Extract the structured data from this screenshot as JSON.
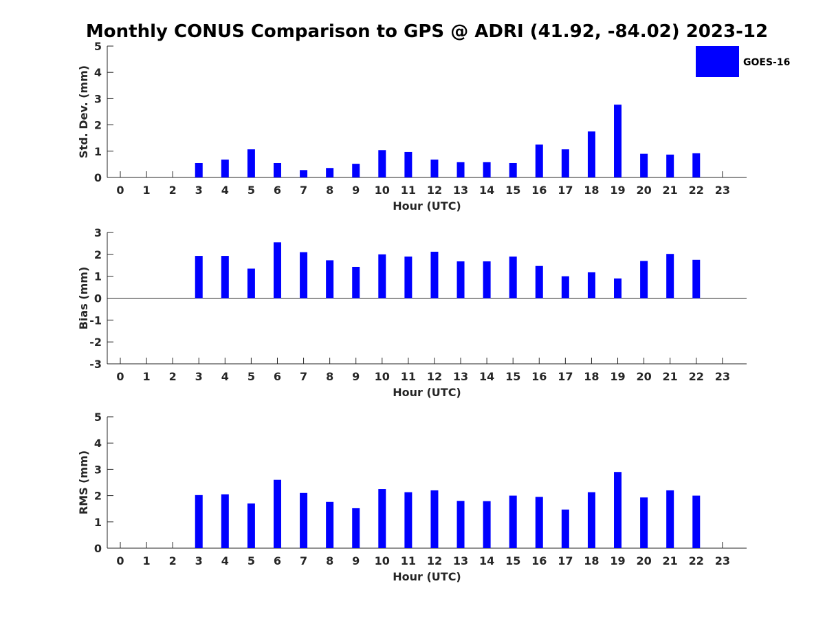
{
  "title": "Monthly CONUS Comparison to GPS @ ADRI (41.92, -84.02) 2023-12",
  "legend": {
    "label": "GOES-16",
    "color": "#0000ff"
  },
  "colors": {
    "bar": "#0000ff",
    "axis": "#262626"
  },
  "chart_data": [
    {
      "type": "bar",
      "id": "stddev",
      "ylabel": "Std. Dev. (mm)",
      "xlabel": "Hour (UTC)",
      "ylim": [
        0,
        5
      ],
      "yticks": [
        0,
        1,
        2,
        3,
        4,
        5
      ],
      "categories": [
        "0",
        "1",
        "2",
        "3",
        "4",
        "5",
        "6",
        "7",
        "8",
        "9",
        "10",
        "11",
        "12",
        "13",
        "14",
        "15",
        "16",
        "17",
        "18",
        "19",
        "20",
        "21",
        "22",
        "23"
      ],
      "series": [
        {
          "name": "GOES-16",
          "values": [
            null,
            null,
            null,
            0.55,
            0.68,
            1.07,
            0.55,
            0.28,
            0.36,
            0.52,
            1.04,
            0.97,
            0.68,
            0.58,
            0.58,
            0.55,
            1.25,
            1.07,
            1.75,
            2.77,
            0.9,
            0.87,
            0.92,
            null
          ]
        }
      ]
    },
    {
      "type": "bar",
      "id": "bias",
      "ylabel": "Bias (mm)",
      "xlabel": "Hour (UTC)",
      "ylim": [
        -3,
        3
      ],
      "yticks": [
        -3,
        -2,
        -1,
        0,
        1,
        2,
        3
      ],
      "categories": [
        "0",
        "1",
        "2",
        "3",
        "4",
        "5",
        "6",
        "7",
        "8",
        "9",
        "10",
        "11",
        "12",
        "13",
        "14",
        "15",
        "16",
        "17",
        "18",
        "19",
        "20",
        "21",
        "22",
        "23"
      ],
      "series": [
        {
          "name": "GOES-16",
          "values": [
            null,
            null,
            null,
            1.93,
            1.93,
            1.35,
            2.55,
            2.1,
            1.73,
            1.43,
            2.0,
            1.9,
            2.12,
            1.68,
            1.68,
            1.9,
            1.47,
            1.0,
            1.18,
            0.9,
            1.7,
            2.02,
            1.75,
            null
          ]
        }
      ]
    },
    {
      "type": "bar",
      "id": "rms",
      "ylabel": "RMS (mm)",
      "xlabel": "Hour (UTC)",
      "ylim": [
        0,
        5
      ],
      "yticks": [
        0,
        1,
        2,
        3,
        4,
        5
      ],
      "categories": [
        "0",
        "1",
        "2",
        "3",
        "4",
        "5",
        "6",
        "7",
        "8",
        "9",
        "10",
        "11",
        "12",
        "13",
        "14",
        "15",
        "16",
        "17",
        "18",
        "19",
        "20",
        "21",
        "22",
        "23"
      ],
      "series": [
        {
          "name": "GOES-16",
          "values": [
            null,
            null,
            null,
            2.02,
            2.05,
            1.7,
            2.6,
            2.1,
            1.76,
            1.52,
            2.25,
            2.13,
            2.2,
            1.8,
            1.79,
            2.0,
            1.95,
            1.47,
            2.13,
            2.9,
            1.93,
            2.2,
            2.0,
            null
          ]
        }
      ]
    }
  ]
}
